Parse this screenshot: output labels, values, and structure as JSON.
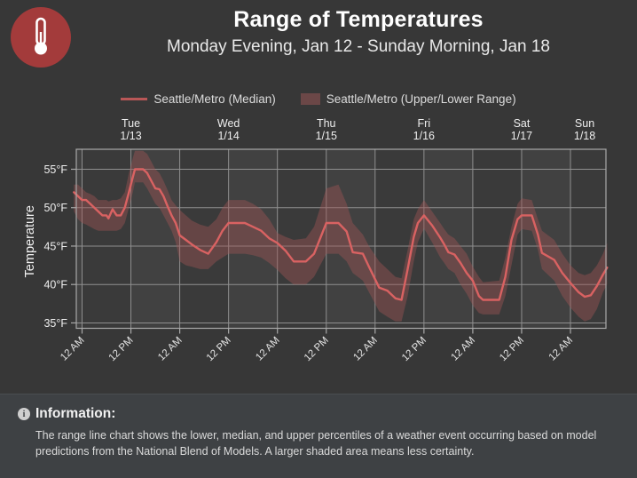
{
  "header": {
    "title": "Range of Temperatures",
    "subtitle": "Monday Evening, Jan 12 - Sunday Morning, Jan 18",
    "icon": "thermometer-icon",
    "icon_bg_color": "#a33b3b"
  },
  "legend": {
    "items": [
      {
        "type": "line",
        "label": "Seattle/Metro (Median)",
        "color": "#d96262"
      },
      {
        "type": "area",
        "label": "Seattle/Metro (Upper/Lower Range)",
        "color": "#6b4747"
      }
    ]
  },
  "footer": {
    "icon": "info-icon",
    "heading": "Information:",
    "body": "The range line chart shows the lower, median, and upper percentiles of a weather event occurring based on model predictions from the National Blend of Models. A larger shaded area means less certainty."
  },
  "chart_data": {
    "type": "line",
    "title": "Range of Temperatures",
    "ylabel": "Temperature",
    "y_unit": "°F",
    "ylim": [
      34.3,
      57.6
    ],
    "grid": true,
    "y_ticks": [
      {
        "value": 35,
        "label": "35°F"
      },
      {
        "value": 40,
        "label": "40°F"
      },
      {
        "value": 45,
        "label": "45°F"
      },
      {
        "value": 50,
        "label": "50°F"
      },
      {
        "value": 55,
        "label": "55°F"
      }
    ],
    "x_hours_domain": [
      -1.4,
      128.7
    ],
    "x_hours_note": "hours relative to Tue Jan 13 12:00 AM; data runs Monday evening Jan 12 through Sunday morning Jan 18",
    "day_labels": [
      {
        "day": "Tue",
        "date": "1/13",
        "t_center": 12
      },
      {
        "day": "Wed",
        "date": "1/14",
        "t_center": 36
      },
      {
        "day": "Thu",
        "date": "1/15",
        "t_center": 60
      },
      {
        "day": "Fri",
        "date": "1/16",
        "t_center": 84
      },
      {
        "day": "Sat",
        "date": "1/17",
        "t_center": 108
      },
      {
        "day": "Sun",
        "date": "1/18",
        "t_center": 123.5
      }
    ],
    "time_ticks": [
      {
        "t": 0,
        "label": "12 AM"
      },
      {
        "t": 12,
        "label": "12 PM"
      },
      {
        "t": 24,
        "label": "12 AM"
      },
      {
        "t": 36,
        "label": "12 PM"
      },
      {
        "t": 48,
        "label": "12 AM"
      },
      {
        "t": 60,
        "label": "12 PM"
      },
      {
        "t": 72,
        "label": "12 AM"
      },
      {
        "t": 84,
        "label": "12 PM"
      },
      {
        "t": 96,
        "label": "12 AM"
      },
      {
        "t": 108,
        "label": "12 PM"
      },
      {
        "t": 120,
        "label": "12 AM"
      }
    ],
    "series": [
      {
        "name": "Seattle/Metro (Median)",
        "type": "line",
        "color": "#d96262",
        "width": 2.4
      },
      {
        "name": "Seattle/Metro (Upper/Lower Range)",
        "type": "band",
        "fill": "#a35555",
        "fill_opacity": 0.42
      }
    ],
    "columns": [
      "t_hours",
      "median_F",
      "lower_F",
      "upper_F"
    ],
    "points": [
      [
        -2,
        52,
        49.5,
        53
      ],
      [
        -1,
        51.5,
        48.5,
        53
      ],
      [
        0,
        51,
        48,
        52.5
      ],
      [
        1,
        51,
        47.8,
        52
      ],
      [
        2,
        50.5,
        47.5,
        51.8
      ],
      [
        3,
        50,
        47.2,
        51.5
      ],
      [
        4,
        49.5,
        47,
        51
      ],
      [
        5,
        49,
        47,
        51
      ],
      [
        6,
        49,
        47,
        51
      ],
      [
        6.5,
        48.6,
        47,
        50.8
      ],
      [
        7.5,
        49.8,
        47,
        51
      ],
      [
        8.5,
        49,
        47,
        51
      ],
      [
        9.5,
        49,
        47.2,
        51.2
      ],
      [
        10.5,
        50,
        48,
        52
      ],
      [
        11.5,
        52,
        50,
        54.5
      ],
      [
        12.5,
        54,
        52,
        56.5
      ],
      [
        13,
        55,
        53.3,
        57.4
      ],
      [
        15,
        55,
        53.3,
        57.4
      ],
      [
        16,
        54.5,
        52.5,
        57
      ],
      [
        17,
        53.5,
        51.5,
        56
      ],
      [
        18,
        52.5,
        50.5,
        55
      ],
      [
        19,
        52.4,
        50,
        54.5
      ],
      [
        20,
        51.5,
        49,
        53.5
      ],
      [
        21,
        50.2,
        48,
        52.3
      ],
      [
        22,
        49,
        47,
        51
      ],
      [
        23,
        48,
        45.5,
        50.3
      ],
      [
        24,
        46.4,
        43,
        49.7
      ],
      [
        25.5,
        45.8,
        42.5,
        49
      ],
      [
        27,
        45.2,
        42.3,
        48.3
      ],
      [
        29,
        44.5,
        42,
        47.8
      ],
      [
        31,
        44,
        42,
        47.5
      ],
      [
        33,
        45.5,
        43,
        48.5
      ],
      [
        34.5,
        47,
        43.5,
        50
      ],
      [
        36,
        48,
        44,
        51
      ],
      [
        40,
        48,
        44,
        51
      ],
      [
        42,
        47.5,
        43.8,
        50.5
      ],
      [
        44,
        47,
        43.5,
        49.8
      ],
      [
        46,
        46,
        42.8,
        48.5
      ],
      [
        48,
        45.4,
        41.9,
        46.7
      ],
      [
        50,
        44.4,
        40.8,
        46.2
      ],
      [
        52,
        43,
        40,
        45.8
      ],
      [
        55,
        43,
        40,
        46
      ],
      [
        57,
        44,
        41,
        47.5
      ],
      [
        58.5,
        46,
        42.5,
        50
      ],
      [
        60,
        48,
        44,
        52.5
      ],
      [
        63,
        48,
        44,
        53
      ],
      [
        65,
        46.9,
        43,
        50.5
      ],
      [
        66.5,
        44.2,
        41.5,
        48
      ],
      [
        69,
        44,
        40.5,
        46.5
      ],
      [
        70.5,
        42.3,
        39,
        45
      ],
      [
        73,
        39.6,
        36.5,
        43
      ],
      [
        75,
        39.2,
        35.8,
        42
      ],
      [
        77,
        38.2,
        35.2,
        41
      ],
      [
        78.5,
        38,
        35.2,
        40.8
      ],
      [
        80,
        42,
        38.5,
        44.5
      ],
      [
        81.5,
        46.2,
        43,
        48.5
      ],
      [
        82.5,
        48,
        45.5,
        49.8
      ],
      [
        84,
        49,
        47.3,
        51
      ],
      [
        86,
        47.7,
        45.5,
        49.5
      ],
      [
        88,
        46.1,
        43.5,
        48
      ],
      [
        89,
        45.2,
        42.8,
        47.2
      ],
      [
        90,
        44.2,
        42,
        46.5
      ],
      [
        91.5,
        43.9,
        41.5,
        46
      ],
      [
        93,
        42.8,
        40,
        45
      ],
      [
        94.5,
        41.5,
        38.8,
        44
      ],
      [
        96,
        40.5,
        37.3,
        42.3
      ],
      [
        97.5,
        38.5,
        36.3,
        41
      ],
      [
        98.5,
        38,
        36.1,
        40.3
      ],
      [
        102.5,
        38,
        36.1,
        40.5
      ],
      [
        104,
        41,
        38.5,
        43.5
      ],
      [
        105.5,
        45.8,
        42.5,
        47.5
      ],
      [
        107,
        48.5,
        46.5,
        50.5
      ],
      [
        108,
        49,
        47.2,
        51.2
      ],
      [
        110.5,
        49,
        47,
        51
      ],
      [
        112,
        46.5,
        44.5,
        48.5
      ],
      [
        113,
        44.1,
        42,
        47
      ],
      [
        116,
        43.2,
        40.5,
        45.8
      ],
      [
        118,
        41.5,
        38.5,
        44
      ],
      [
        120,
        40.2,
        37,
        42.5
      ],
      [
        122,
        39,
        35.8,
        41.5
      ],
      [
        123.5,
        38.4,
        35.2,
        41.2
      ],
      [
        125,
        38.6,
        35.5,
        41.5
      ],
      [
        126.5,
        39.8,
        36.8,
        42.5
      ],
      [
        128,
        41.3,
        39,
        44
      ],
      [
        129,
        42.2,
        40,
        45.4
      ]
    ],
    "colors": {
      "plot_bg_am": "#3a3a3a",
      "plot_bg_pm": "#414141",
      "gridline": "#8f8f8f",
      "plot_border": "#a8a8a8",
      "axis_text": "#eeeeee"
    },
    "legend_position": "top"
  }
}
